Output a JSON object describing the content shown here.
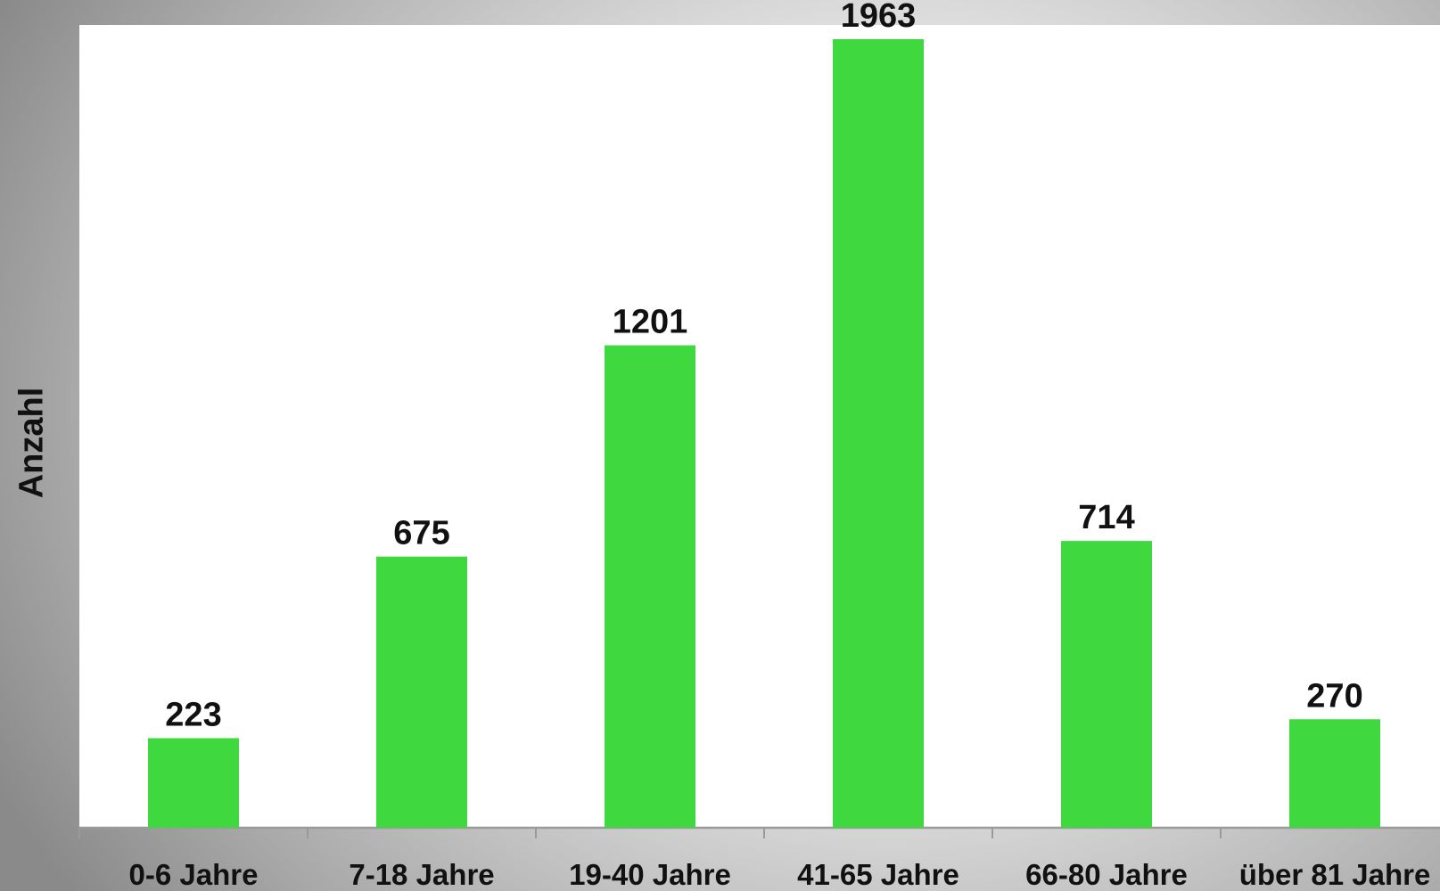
{
  "chart_data": {
    "type": "bar",
    "title": "",
    "xlabel": "",
    "ylabel": "Anzahl",
    "categories": [
      "0-6 Jahre",
      "7-18 Jahre",
      "19-40 Jahre",
      "41-65 Jahre",
      "66-80 Jahre",
      "über 81 Jahre"
    ],
    "values": [
      223,
      675,
      1201,
      1963,
      714,
      270
    ],
    "ylim": [
      0,
      2000
    ],
    "grid": false,
    "legend": "none",
    "colors": {
      "bar": "#3fd83f",
      "axis": "#9a9a9a",
      "text": "#111111"
    }
  }
}
